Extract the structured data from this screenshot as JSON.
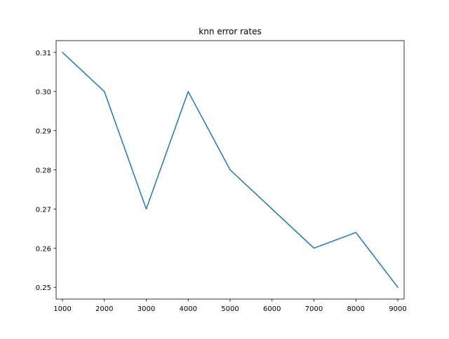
{
  "chart_data": {
    "type": "line",
    "title": "knn error rates",
    "xlabel": "",
    "ylabel": "",
    "x": [
      1000,
      2000,
      3000,
      4000,
      5000,
      6000,
      7000,
      8000,
      9000
    ],
    "series": [
      {
        "values": [
          0.31,
          0.3,
          0.27,
          0.3,
          0.28,
          0.27,
          0.26,
          0.264,
          0.25
        ],
        "color": "#1f77b4"
      }
    ],
    "xlim": [
      850,
      9150
    ],
    "ylim": [
      0.247,
      0.313
    ],
    "xticks": [
      1000,
      2000,
      3000,
      4000,
      5000,
      6000,
      7000,
      8000,
      9000
    ],
    "xtick_labels": [
      "1000",
      "2000",
      "3000",
      "4000",
      "5000",
      "6000",
      "7000",
      "8000",
      "9000"
    ],
    "yticks": [
      0.25,
      0.26,
      0.27,
      0.28,
      0.29,
      0.3,
      0.31
    ],
    "ytick_labels": [
      "0.25",
      "0.26",
      "0.27",
      "0.28",
      "0.29",
      "0.30",
      "0.31"
    ],
    "grid": false,
    "legend": false
  }
}
